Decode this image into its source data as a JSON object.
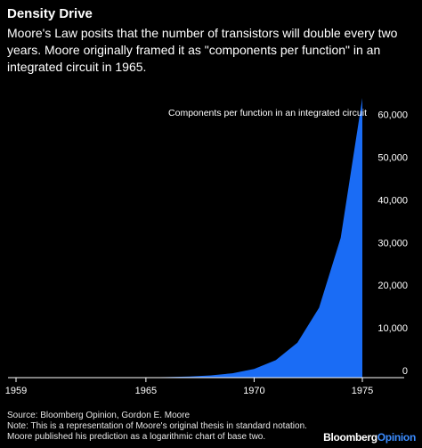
{
  "header": {
    "title": "Density Drive",
    "subtitle": "Moore's Law posits that the number of transistors will double every two years. Moore originally framed it as \"components per function\" in an integrated circuit in 1965."
  },
  "chart_data": {
    "type": "area",
    "title": "Density Drive",
    "series": [
      {
        "name": "Components per function in an integrated circuit",
        "x": [
          1959,
          1960,
          1961,
          1962,
          1963,
          1964,
          1965,
          1966,
          1967,
          1968,
          1969,
          1970,
          1971,
          1972,
          1973,
          1974,
          1975
        ],
        "values": [
          1,
          2,
          4,
          8,
          16,
          32,
          64,
          128,
          256,
          512,
          1024,
          2048,
          4096,
          8192,
          16384,
          32768,
          65536
        ]
      }
    ],
    "x_ticks": [
      "1959",
      "1965",
      "1970",
      "1975"
    ],
    "y_ticks": [
      "0",
      "10,000",
      "20,000",
      "30,000",
      "40,000",
      "50,000",
      "60,000"
    ],
    "xlim": [
      1959,
      1976.3
    ],
    "ylim": [
      0,
      65536
    ],
    "series_label": "Components per function in an integrated circuit",
    "y_axis_position": "right",
    "grid": false,
    "colors": {
      "area": "#1a6cf5",
      "background": "#000000",
      "axis": "#ffffff"
    }
  },
  "footer": {
    "source_lines": [
      "Source: Bloomberg Opinion, Gordon E. Moore",
      "Note: This is a representation of Moore's original thesis in standard notation.",
      "Moore published his prediction as a logarithmic chart of base two."
    ],
    "brand_primary": "Bloomberg",
    "brand_secondary": "Opinion"
  }
}
